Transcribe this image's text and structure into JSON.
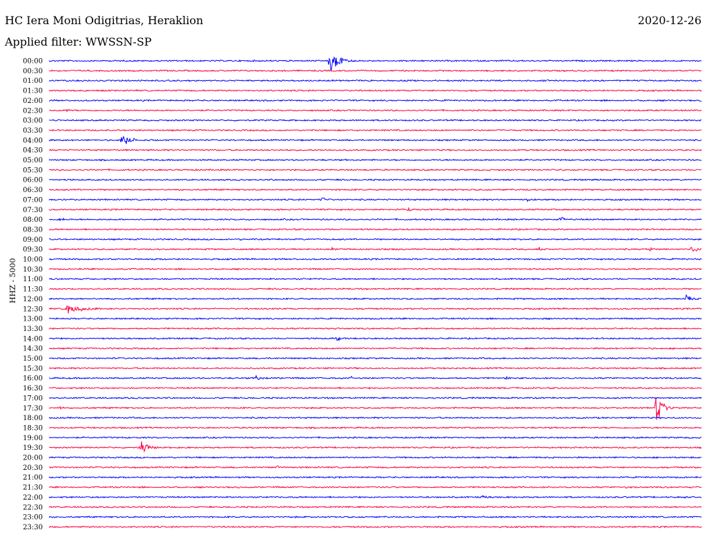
{
  "header": {
    "station": "HC Iera Moni Odigitrias, Heraklion",
    "filter": "Applied filter: WWSSN-SP",
    "date": "2020-12-26"
  },
  "colors": {
    "even": "#0000ff",
    "odd": "#ff0040"
  },
  "chart_data": {
    "type": "line",
    "title": "HC Iera Moni Odigitrias, Heraklion",
    "subtitle": "Applied filter: WWSSN-SP",
    "ylabel": "HHZ - 5000",
    "xlabel": "",
    "grid": false,
    "legend": "none",
    "x_domain_minutes": [
      0,
      30
    ],
    "rows": [
      "00:00",
      "00:30",
      "01:00",
      "01:30",
      "02:00",
      "02:30",
      "03:00",
      "03:30",
      "04:00",
      "04:30",
      "05:00",
      "05:30",
      "06:00",
      "06:30",
      "07:00",
      "07:30",
      "08:00",
      "08:30",
      "09:00",
      "09:30",
      "10:00",
      "10:30",
      "11:00",
      "11:30",
      "12:00",
      "12:30",
      "13:00",
      "13:30",
      "14:00",
      "14:30",
      "15:00",
      "15:30",
      "16:00",
      "16:30",
      "17:00",
      "17:30",
      "18:00",
      "18:30",
      "19:00",
      "19:30",
      "20:00",
      "20:30",
      "21:00",
      "21:30",
      "22:00",
      "22:30",
      "23:00",
      "23:30"
    ],
    "events": [
      {
        "row": "00:00",
        "minute": 12.9,
        "amplitude": 22,
        "duration": 1.2
      },
      {
        "row": "00:30",
        "minute": 27.4,
        "amplitude": 2,
        "duration": 0.5
      },
      {
        "row": "02:30",
        "minute": 0.8,
        "amplitude": 4,
        "duration": 0.5
      },
      {
        "row": "02:30",
        "minute": 29.6,
        "amplitude": 3,
        "duration": 0.5
      },
      {
        "row": "03:00",
        "minute": 0.2,
        "amplitude": 2,
        "duration": 0.6
      },
      {
        "row": "04:00",
        "minute": 3.3,
        "amplitude": 11,
        "duration": 1.4
      },
      {
        "row": "05:30",
        "minute": 23.5,
        "amplitude": 2,
        "duration": 1.5
      },
      {
        "row": "07:00",
        "minute": 12.5,
        "amplitude": 5,
        "duration": 1.0
      },
      {
        "row": "07:00",
        "minute": 22.0,
        "amplitude": 3,
        "duration": 1.0
      },
      {
        "row": "07:30",
        "minute": 16.5,
        "amplitude": 3,
        "duration": 1.0
      },
      {
        "row": "08:00",
        "minute": 0.5,
        "amplitude": 4,
        "duration": 0.8
      },
      {
        "row": "08:00",
        "minute": 23.5,
        "amplitude": 7,
        "duration": 0.6
      },
      {
        "row": "08:30",
        "minute": 18.5,
        "amplitude": 2,
        "duration": 1.5
      },
      {
        "row": "09:00",
        "minute": 8.8,
        "amplitude": 5,
        "duration": 0.3
      },
      {
        "row": "09:30",
        "minute": 13.0,
        "amplitude": 4,
        "duration": 0.6
      },
      {
        "row": "09:30",
        "minute": 16.0,
        "amplitude": 4,
        "duration": 0.6
      },
      {
        "row": "09:30",
        "minute": 22.5,
        "amplitude": 5,
        "duration": 0.8
      },
      {
        "row": "09:30",
        "minute": 27.5,
        "amplitude": 5,
        "duration": 0.8
      },
      {
        "row": "09:30",
        "minute": 29.5,
        "amplitude": 12,
        "duration": 0.6
      },
      {
        "row": "12:00",
        "minute": 29.3,
        "amplitude": 8,
        "duration": 0.8
      },
      {
        "row": "12:30",
        "minute": 0.8,
        "amplitude": 9,
        "duration": 2.5
      },
      {
        "row": "14:00",
        "minute": 13.2,
        "amplitude": 4,
        "duration": 1.2
      },
      {
        "row": "16:00",
        "minute": 9.5,
        "amplitude": 5,
        "duration": 0.8
      },
      {
        "row": "16:00",
        "minute": 13.9,
        "amplitude": 3,
        "duration": 0.4
      },
      {
        "row": "16:00",
        "minute": 21.0,
        "amplitude": 3,
        "duration": 1.0
      },
      {
        "row": "17:30",
        "minute": 0.4,
        "amplitude": 4,
        "duration": 0.8
      },
      {
        "row": "17:30",
        "minute": 27.9,
        "amplitude": 28,
        "duration": 0.8
      },
      {
        "row": "19:30",
        "minute": 4.2,
        "amplitude": 11,
        "duration": 1.2
      },
      {
        "row": "20:00",
        "minute": 29.5,
        "amplitude": 3,
        "duration": 0.6
      },
      {
        "row": "20:30",
        "minute": 10.5,
        "amplitude": 4,
        "duration": 0.5
      },
      {
        "row": "21:30",
        "minute": 26.5,
        "amplitude": 4,
        "duration": 0.6
      },
      {
        "row": "22:00",
        "minute": 19.9,
        "amplitude": 4,
        "duration": 0.8
      },
      {
        "row": "22:00",
        "minute": 29.2,
        "amplitude": 4,
        "duration": 0.5
      }
    ]
  }
}
